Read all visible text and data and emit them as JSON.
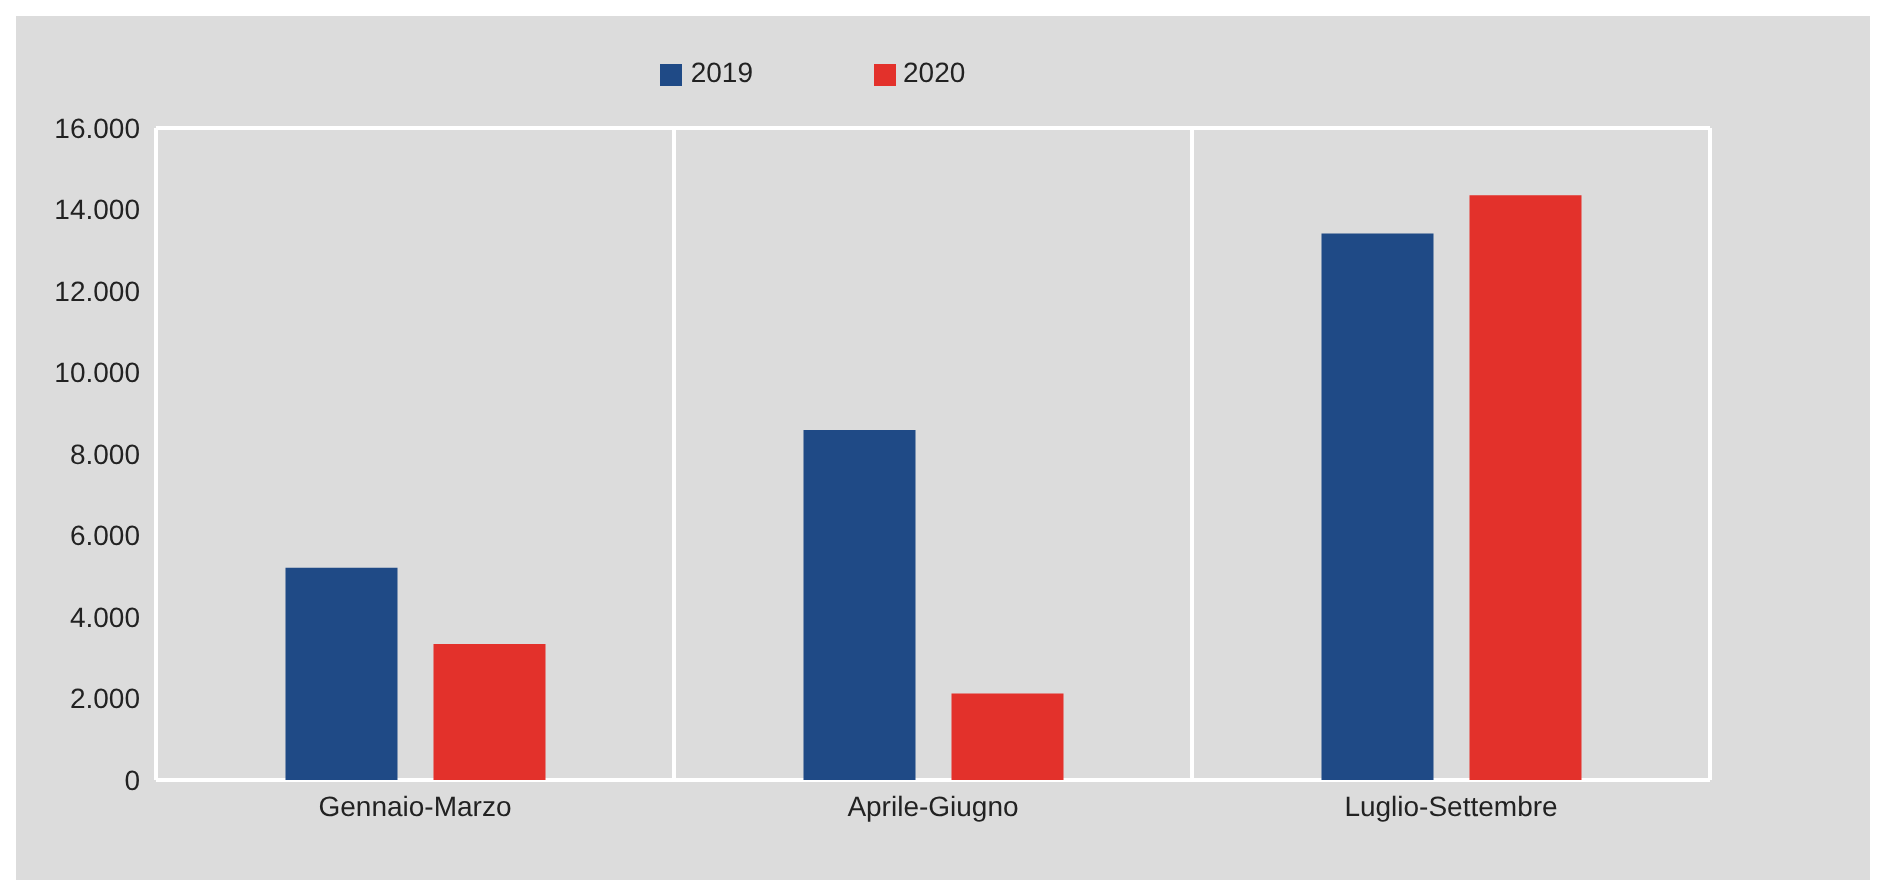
{
  "chart_data": {
    "type": "bar",
    "categories": [
      "Gennaio-Marzo",
      "Aprile-Giugno",
      "Luglio-Settembre"
    ],
    "series": [
      {
        "name": "2019",
        "color": "#1f4a86",
        "values": [
          5210,
          8590,
          13410
        ]
      },
      {
        "name": "2020",
        "color": "#e3312b",
        "values": [
          3340,
          2120,
          14350
        ]
      }
    ],
    "ylim": [
      0,
      16000
    ],
    "yticks": [
      0,
      {
        "value": 2000,
        "label": "2.000"
      },
      {
        "value": 4000,
        "label": "4.000"
      },
      {
        "value": 6000,
        "label": "6.000"
      },
      {
        "value": 8000,
        "label": "8.000"
      },
      {
        "value": 10000,
        "label": "10.000"
      },
      {
        "value": 12000,
        "label": "12.000"
      },
      {
        "value": 14000,
        "label": "14.000"
      },
      {
        "value": 16000,
        "label": "16.000"
      }
    ],
    "grid": true,
    "legend": "top"
  }
}
